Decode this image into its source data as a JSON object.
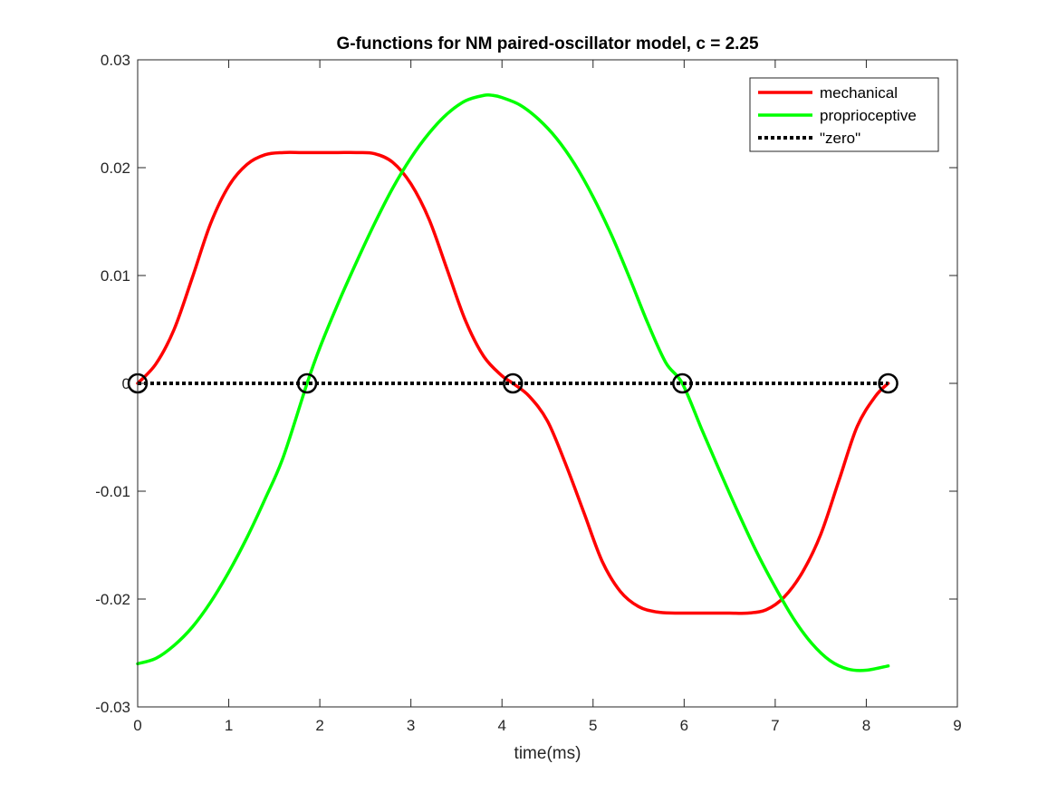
{
  "chart_data": {
    "type": "line",
    "title": "G-functions for NM paired-oscillator model, c = 2.25",
    "xlabel": "time(ms)",
    "ylabel": "",
    "xlim": [
      0,
      9
    ],
    "ylim": [
      -0.03,
      0.03
    ],
    "xticks": [
      0,
      1,
      2,
      3,
      4,
      5,
      6,
      7,
      8,
      9
    ],
    "xtick_labels": [
      "0",
      "1",
      "2",
      "3",
      "4",
      "5",
      "6",
      "7",
      "8",
      "9"
    ],
    "yticks": [
      -0.03,
      -0.02,
      -0.01,
      0,
      0.01,
      0.02,
      0.03
    ],
    "ytick_labels": [
      "-0.03",
      "-0.02",
      "-0.01",
      "0",
      "0.01",
      "0.02",
      "0.03"
    ],
    "grid": false,
    "legend_position": "top-right",
    "series": [
      {
        "name": "mechanical",
        "color": "#ff0000",
        "style": "solid",
        "x": [
          0,
          0.2,
          0.4,
          0.6,
          0.8,
          1.0,
          1.2,
          1.4,
          1.6,
          1.8,
          2.0,
          2.2,
          2.4,
          2.6,
          2.8,
          3.0,
          3.2,
          3.4,
          3.6,
          3.8,
          4.0,
          4.12,
          4.3,
          4.5,
          4.7,
          4.9,
          5.1,
          5.3,
          5.5,
          5.7,
          5.9,
          6.1,
          6.3,
          6.5,
          6.7,
          6.9,
          7.1,
          7.3,
          7.5,
          7.7,
          7.9,
          8.1,
          8.24
        ],
        "y": [
          0,
          0.0018,
          0.005,
          0.0098,
          0.0148,
          0.0183,
          0.0203,
          0.0212,
          0.0214,
          0.0214,
          0.0214,
          0.0214,
          0.0214,
          0.0213,
          0.0205,
          0.0185,
          0.0152,
          0.0105,
          0.0058,
          0.0025,
          0.0007,
          0,
          -0.0012,
          -0.0035,
          -0.0075,
          -0.012,
          -0.0165,
          -0.0193,
          -0.0207,
          -0.0212,
          -0.0213,
          -0.0213,
          -0.0213,
          -0.0213,
          -0.0213,
          -0.021,
          -0.0198,
          -0.0175,
          -0.014,
          -0.009,
          -0.004,
          -0.0012,
          0
        ]
      },
      {
        "name": "proprioceptive",
        "color": "#00ff00",
        "style": "solid",
        "x": [
          0,
          0.2,
          0.4,
          0.6,
          0.8,
          1.0,
          1.2,
          1.4,
          1.6,
          1.86,
          2.0,
          2.2,
          2.4,
          2.6,
          2.8,
          3.0,
          3.2,
          3.4,
          3.6,
          3.8,
          3.9,
          4.0,
          4.2,
          4.4,
          4.6,
          4.8,
          5.0,
          5.2,
          5.4,
          5.6,
          5.8,
          5.98,
          6.2,
          6.4,
          6.6,
          6.8,
          7.0,
          7.2,
          7.4,
          7.6,
          7.8,
          8.0,
          8.24
        ],
        "y": [
          -0.026,
          -0.0255,
          -0.0243,
          -0.0226,
          -0.0203,
          -0.0175,
          -0.0143,
          -0.0107,
          -0.0068,
          0,
          0.0033,
          0.0074,
          0.0112,
          0.0148,
          0.0181,
          0.0209,
          0.0232,
          0.025,
          0.0262,
          0.0267,
          0.0267,
          0.0265,
          0.0258,
          0.0245,
          0.0227,
          0.0203,
          0.0173,
          0.0138,
          0.0098,
          0.0056,
          0.0019,
          0,
          -0.0044,
          -0.0083,
          -0.0121,
          -0.0157,
          -0.0189,
          -0.0218,
          -0.0241,
          -0.0257,
          -0.0265,
          -0.0266,
          -0.0262
        ]
      },
      {
        "name": "\"zero\"",
        "color": "#000000",
        "style": "dotted",
        "x": [
          0,
          8.24
        ],
        "y": [
          0,
          0
        ]
      }
    ],
    "markers": {
      "shape": "circle",
      "color": "#000000",
      "x": [
        0,
        1.86,
        4.12,
        5.98,
        8.24
      ],
      "y": [
        0,
        0,
        0,
        0,
        0
      ]
    }
  }
}
